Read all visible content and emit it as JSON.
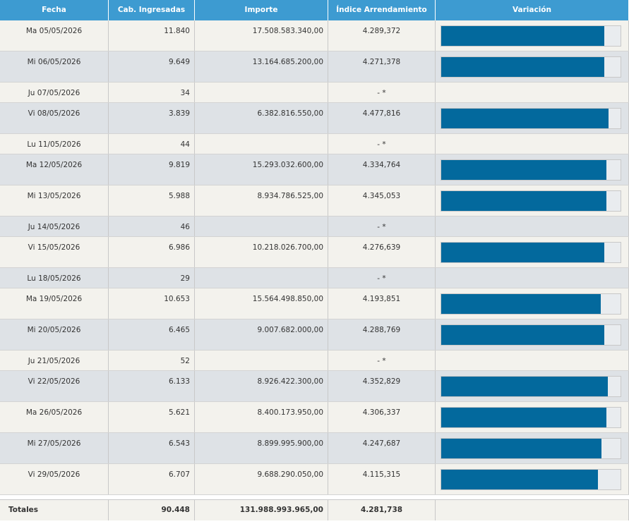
{
  "headers": {
    "fecha": "Fecha",
    "cab": "Cab. Ingresadas",
    "importe": "Importe",
    "indice": "Índice Arrendamiento",
    "variacion": "Variación"
  },
  "rows": [
    {
      "fecha": "Ma 05/05/2026",
      "cab": "11.840",
      "importe": "17.508.583.340,00",
      "indice": "4.289,372",
      "variacion": 0.91
    },
    {
      "fecha": "Mi 06/05/2026",
      "cab": "9.649",
      "importe": "13.164.685.200,00",
      "indice": "4.271,378",
      "variacion": 0.91
    },
    {
      "fecha": "Ju 07/05/2026",
      "cab": "34",
      "importe": "",
      "indice": "- *",
      "variacion": null
    },
    {
      "fecha": "Vi 08/05/2026",
      "cab": "3.839",
      "importe": "6.382.816.550,00",
      "indice": "4.477,816",
      "variacion": 0.935
    },
    {
      "fecha": "Lu 11/05/2026",
      "cab": "44",
      "importe": "",
      "indice": "- *",
      "variacion": null
    },
    {
      "fecha": "Ma 12/05/2026",
      "cab": "9.819",
      "importe": "15.293.032.600,00",
      "indice": "4.334,764",
      "variacion": 0.92
    },
    {
      "fecha": "Mi 13/05/2026",
      "cab": "5.988",
      "importe": "8.934.786.525,00",
      "indice": "4.345,053",
      "variacion": 0.92
    },
    {
      "fecha": "Ju 14/05/2026",
      "cab": "46",
      "importe": "",
      "indice": "- *",
      "variacion": null
    },
    {
      "fecha": "Vi 15/05/2026",
      "cab": "6.986",
      "importe": "10.218.026.700,00",
      "indice": "4.276,639",
      "variacion": 0.91
    },
    {
      "fecha": "Lu 18/05/2026",
      "cab": "29",
      "importe": "",
      "indice": "- *",
      "variacion": null
    },
    {
      "fecha": "Ma 19/05/2026",
      "cab": "10.653",
      "importe": "15.564.498.850,00",
      "indice": "4.193,851",
      "variacion": 0.89
    },
    {
      "fecha": "Mi 20/05/2026",
      "cab": "6.465",
      "importe": "9.007.682.000,00",
      "indice": "4.288,769",
      "variacion": 0.91
    },
    {
      "fecha": "Ju 21/05/2026",
      "cab": "52",
      "importe": "",
      "indice": "- *",
      "variacion": null
    },
    {
      "fecha": "Vi 22/05/2026",
      "cab": "6.133",
      "importe": "8.926.422.300,00",
      "indice": "4.352,829",
      "variacion": 0.93
    },
    {
      "fecha": "Ma 26/05/2026",
      "cab": "5.621",
      "importe": "8.400.173.950,00",
      "indice": "4.306,337",
      "variacion": 0.92
    },
    {
      "fecha": "Mi 27/05/2026",
      "cab": "6.543",
      "importe": "8.899.995.900,00",
      "indice": "4.247,687",
      "variacion": 0.895
    },
    {
      "fecha": "Vi 29/05/2026",
      "cab": "6.707",
      "importe": "9.688.290.050,00",
      "indice": "4.115,315",
      "variacion": 0.875
    }
  ],
  "totals": {
    "label": "Totales",
    "cab": "90.448",
    "importe": "131.988.993.965,00",
    "indice": "4.281,738"
  },
  "colors": {
    "header": "#3d9bd1",
    "bar": "#03699d",
    "row_light": "#f3f2ed",
    "row_dark": "#dee2e6"
  }
}
